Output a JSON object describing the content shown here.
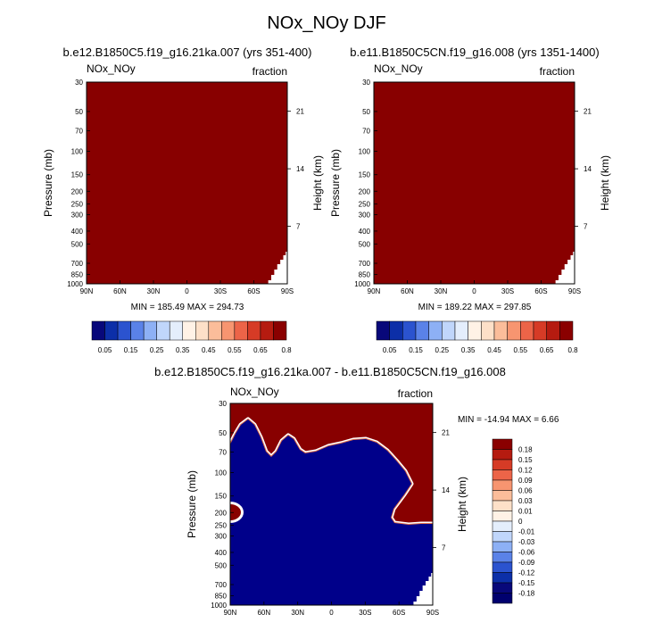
{
  "title": "NOx_NOy DJF",
  "colors": {
    "field": "#880000",
    "diff_low": "#00008a",
    "frame": "#000000",
    "missing": "#ffffff"
  },
  "colorbar_top": {
    "labels": [
      "0.05",
      "0.15",
      "0.25",
      "0.35",
      "0.45",
      "0.55",
      "0.65",
      "0.8"
    ],
    "colors": [
      "#08087a",
      "#0c2fa8",
      "#2b53cf",
      "#5a82e8",
      "#8db0f5",
      "#c0d6fb",
      "#e4eefc",
      "#fff2e6",
      "#fde0c8",
      "#fbbd9a",
      "#f79570",
      "#ec6448",
      "#d63b26",
      "#b51b10",
      "#8a0000"
    ]
  },
  "colorbar_diff": {
    "labels": [
      "0.18",
      "0.15",
      "0.12",
      "0.09",
      "0.06",
      "0.03",
      "0.01",
      "0",
      "-0.01",
      "-0.03",
      "-0.06",
      "-0.09",
      "-0.12",
      "-0.15",
      "-0.18"
    ],
    "colors": [
      "#8a0000",
      "#b51b10",
      "#d63b26",
      "#ec6448",
      "#f79570",
      "#fbbd9a",
      "#fde0c8",
      "#fff2e6",
      "#e4eefc",
      "#c0d6fb",
      "#8db0f5",
      "#5a82e8",
      "#2b53cf",
      "#0c2fa8",
      "#08087a",
      "#00006e"
    ]
  },
  "chart_data": [
    {
      "type": "heatmap",
      "title": "b.e12.B1850C5.f19_g16.21ka.007 (yrs 351-400)",
      "left_label": "NOx_NOy",
      "right_label": "fraction",
      "xlabel": "",
      "ylabel": "Pressure (mb)",
      "ylabel_right": "Height (km)",
      "x_ticks": [
        "90N",
        "60N",
        "30N",
        "0",
        "30S",
        "60S",
        "90S"
      ],
      "y_ticks": [
        "30",
        "50",
        "70",
        "100",
        "150",
        "200",
        "250",
        "300",
        "400",
        "500",
        "700",
        "850",
        "1000"
      ],
      "height_ticks": [
        "21",
        "14",
        "7"
      ],
      "min_max": "MIN = 185.49   MAX = 294.73",
      "fill": "uniform maximum (> 0.8) everywhere"
    },
    {
      "type": "heatmap",
      "title": "b.e11.B1850C5CN.f19_g16.008 (yrs 1351-1400)",
      "left_label": "NOx_NOy",
      "right_label": "fraction",
      "xlabel": "",
      "ylabel": "Pressure (mb)",
      "ylabel_right": "Height (km)",
      "x_ticks": [
        "90N",
        "60N",
        "30N",
        "0",
        "30S",
        "60S",
        "90S"
      ],
      "y_ticks": [
        "30",
        "50",
        "70",
        "100",
        "150",
        "200",
        "250",
        "300",
        "400",
        "500",
        "700",
        "850",
        "1000"
      ],
      "height_ticks": [
        "21",
        "14",
        "7"
      ],
      "min_max": "MIN = 189.22   MAX = 297.85",
      "fill": "uniform maximum (> 0.8) everywhere"
    },
    {
      "type": "heatmap",
      "title": "b.e12.B1850C5.f19_g16.21ka.007 - b.e11.B1850C5CN.f19_g16.008",
      "left_label": "NOx_NOy",
      "right_label": "fraction",
      "xlabel": "",
      "ylabel": "Pressure (mb)",
      "ylabel_right": "Height (km)",
      "x_ticks": [
        "90N",
        "60N",
        "30N",
        "0",
        "30S",
        "60S",
        "90S"
      ],
      "y_ticks": [
        "30",
        "50",
        "70",
        "100",
        "150",
        "200",
        "250",
        "300",
        "400",
        "500",
        "700",
        "850",
        "1000"
      ],
      "height_ticks": [
        "21",
        "14",
        "7"
      ],
      "min_max": "MIN = -14.94   MAX =   6.66",
      "fill": "upper region > 0.18, lower region < -0.18, boundary near 50-100 mb in the NH/tropics and ~250 mb at 60S-90S"
    }
  ]
}
